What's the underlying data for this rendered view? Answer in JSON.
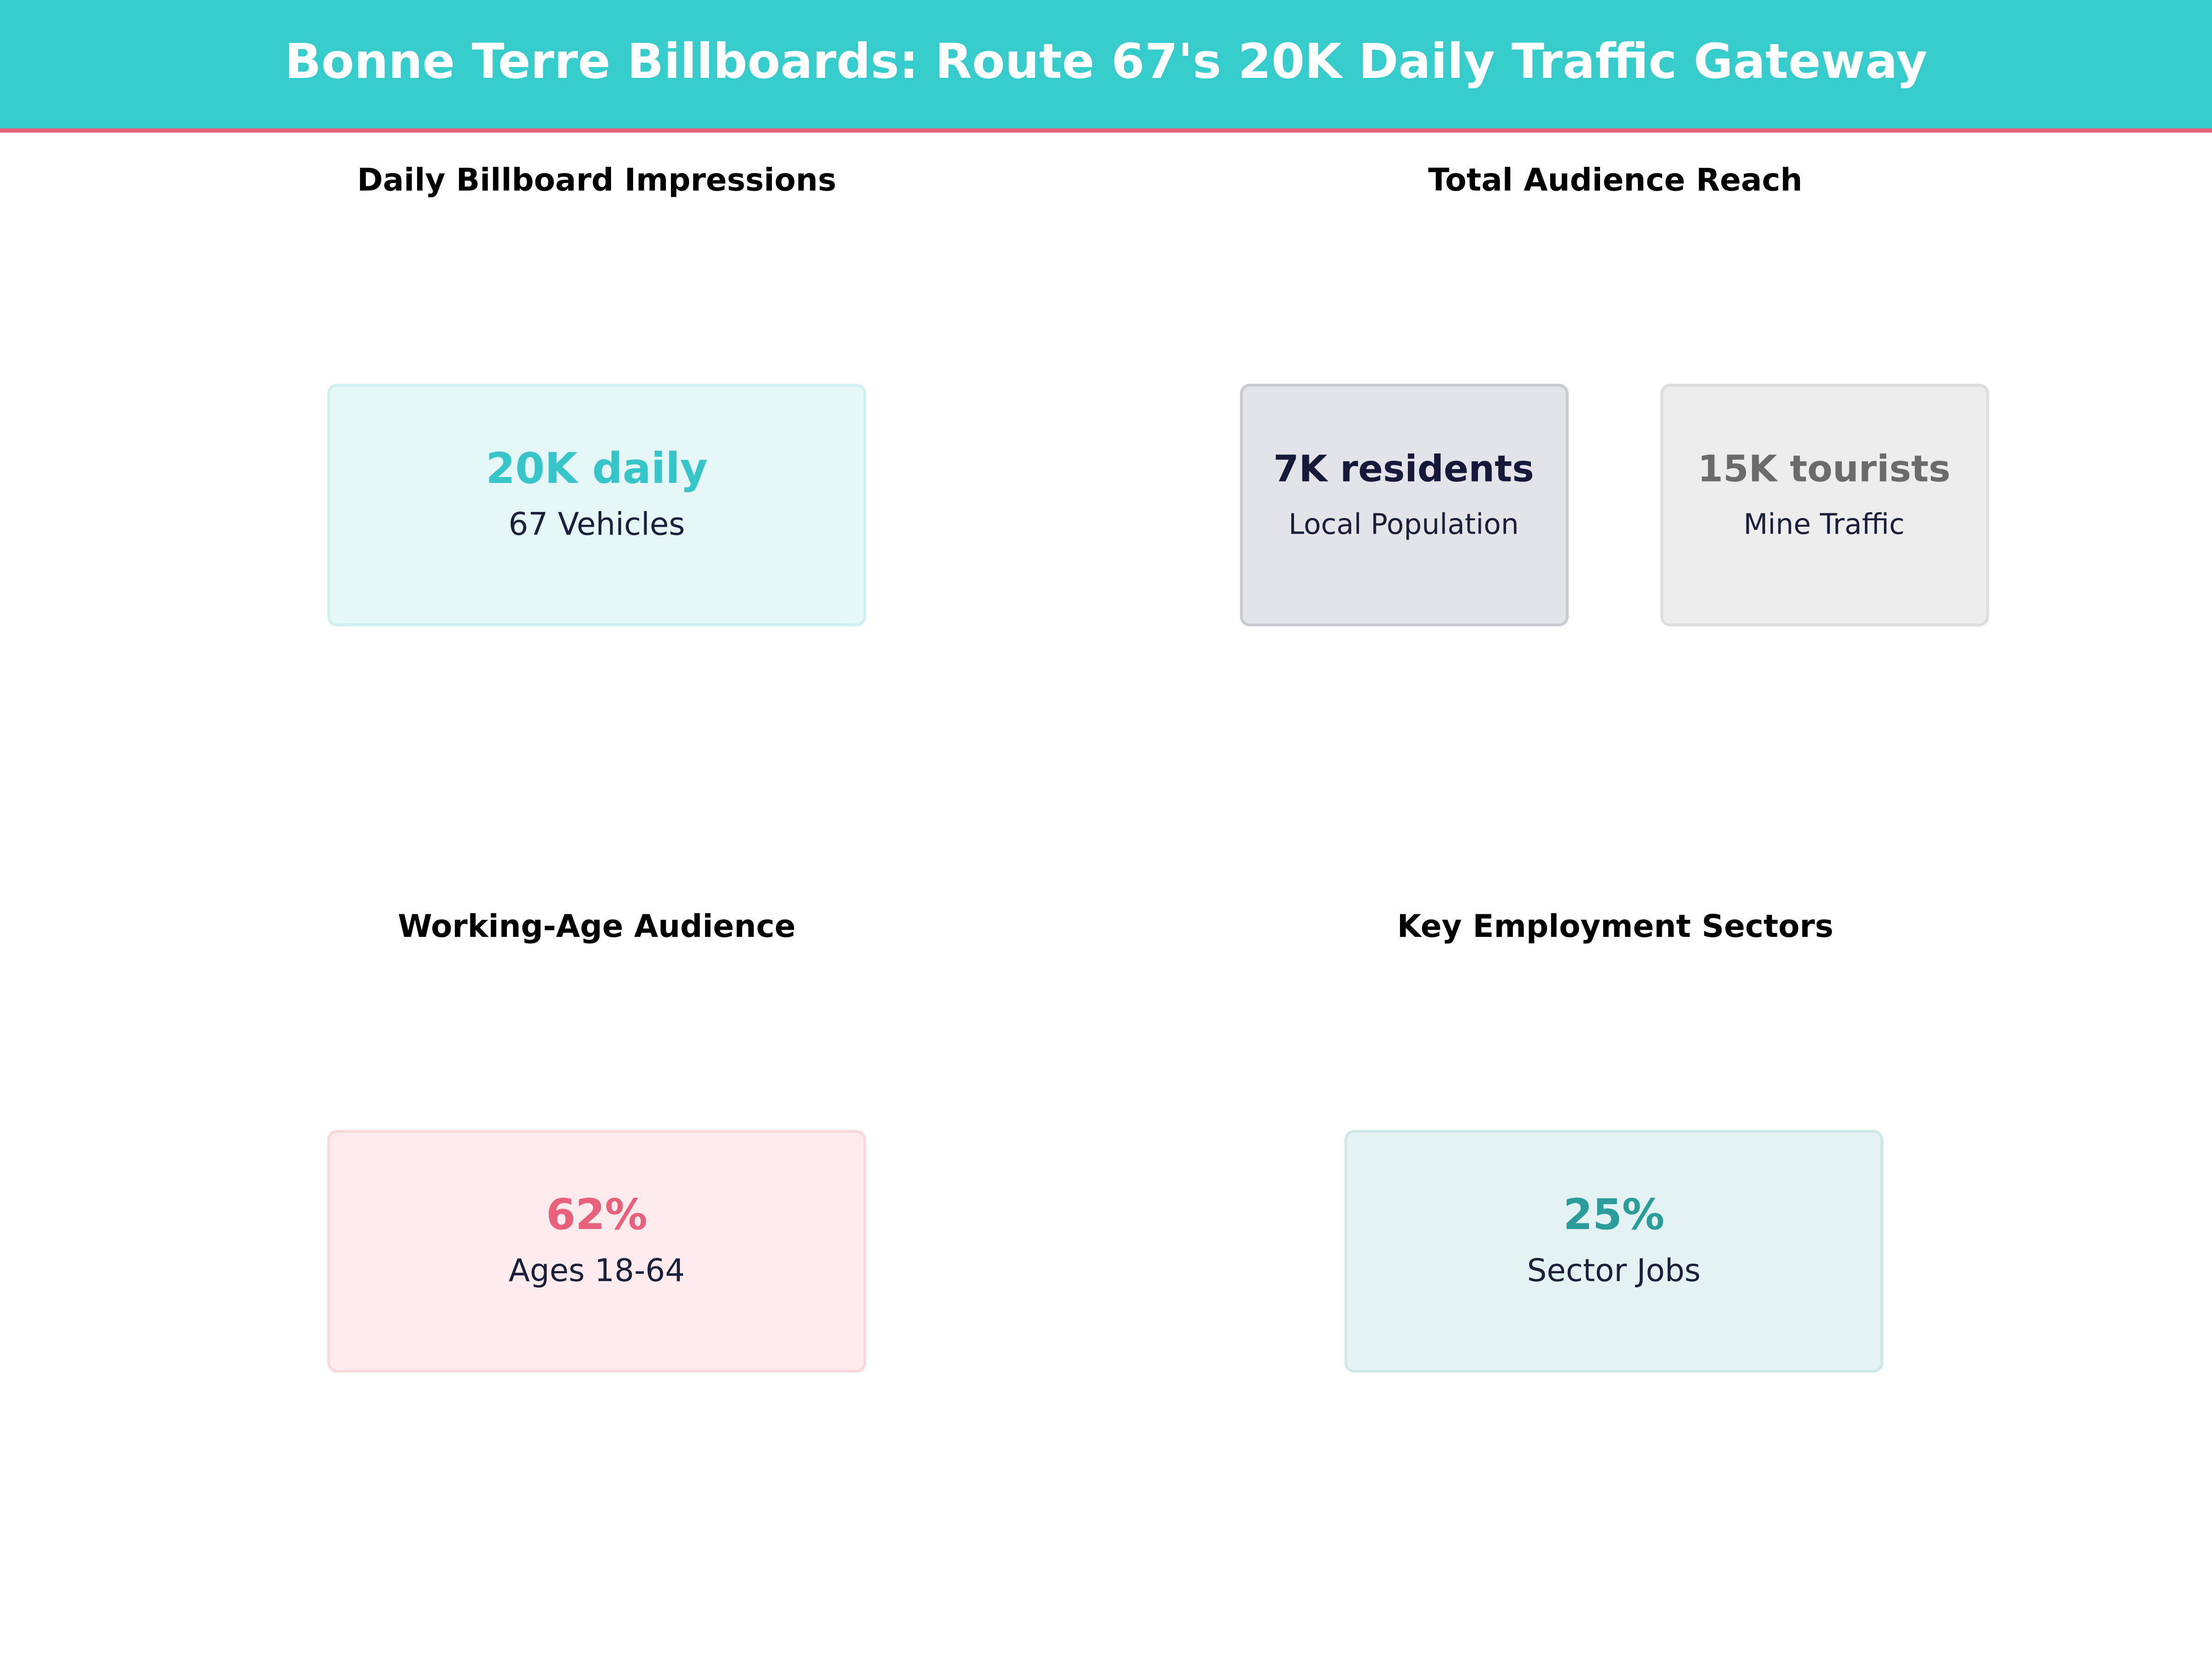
{
  "header": {
    "title": "Bonne Terre Billboards: Route 67's 20K Daily Traffic Gateway"
  },
  "panels": [
    {
      "title": "Daily Billboard Impressions",
      "cards": [
        {
          "value": "20K daily",
          "label": "67 Vehicles"
        }
      ]
    },
    {
      "title": "Total Audience Reach",
      "cards": [
        {
          "value": "7K residents",
          "label": "Local Population"
        },
        {
          "value": "15K tourists",
          "label": "Mine Traffic"
        }
      ]
    },
    {
      "title": "Working-Age Audience",
      "cards": [
        {
          "value": "62%",
          "label": "Ages 18-64"
        }
      ]
    },
    {
      "title": "Key Employment Sectors",
      "cards": [
        {
          "value": "25%",
          "label": "Sector Jobs"
        }
      ]
    }
  ]
}
